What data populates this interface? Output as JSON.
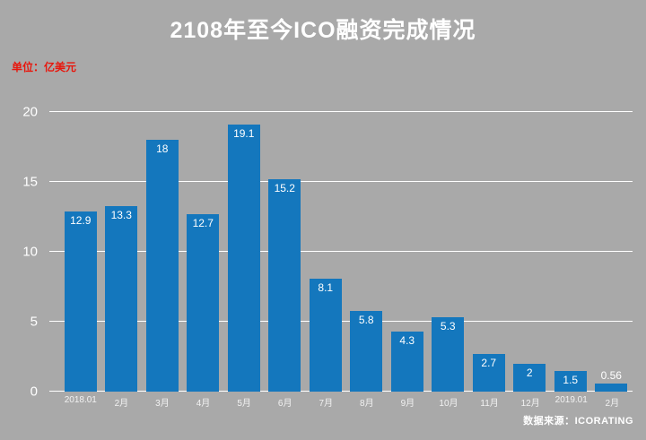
{
  "chart_data": {
    "type": "bar",
    "title": "2108年至今ICO融资完成情况",
    "unit_label": "单位：亿美元",
    "source": "数据来源：ICORATING",
    "categories": [
      "2018.01",
      "2月",
      "3月",
      "4月",
      "5月",
      "6月",
      "7月",
      "8月",
      "9月",
      "10月",
      "11月",
      "12月",
      "2019.01",
      "2月"
    ],
    "values": [
      12.9,
      13.3,
      18,
      12.7,
      19.1,
      15.2,
      8.1,
      5.8,
      4.3,
      5.3,
      2.7,
      2,
      1.5,
      0.56
    ],
    "value_labels": [
      "12.9",
      "13.3",
      "18",
      "12.7",
      "19.1",
      "15.2",
      "8.1",
      "5.8",
      "4.3",
      "5.3",
      "2.7",
      "2",
      "1.5",
      "0.56"
    ],
    "xlabel": "",
    "ylabel": "",
    "ylim": [
      0,
      20
    ],
    "yticks": [
      0,
      5,
      10,
      15,
      20
    ],
    "grid": true,
    "legend": false,
    "colors": {
      "background": "#a9a9a9",
      "bar": "#1477bd",
      "title": "#ffffff",
      "unit_label": "#e8160c",
      "grid": "#ffffff",
      "tick_label": "#ffffff",
      "data_label": "#ffffff",
      "source": "#ffffff"
    }
  }
}
